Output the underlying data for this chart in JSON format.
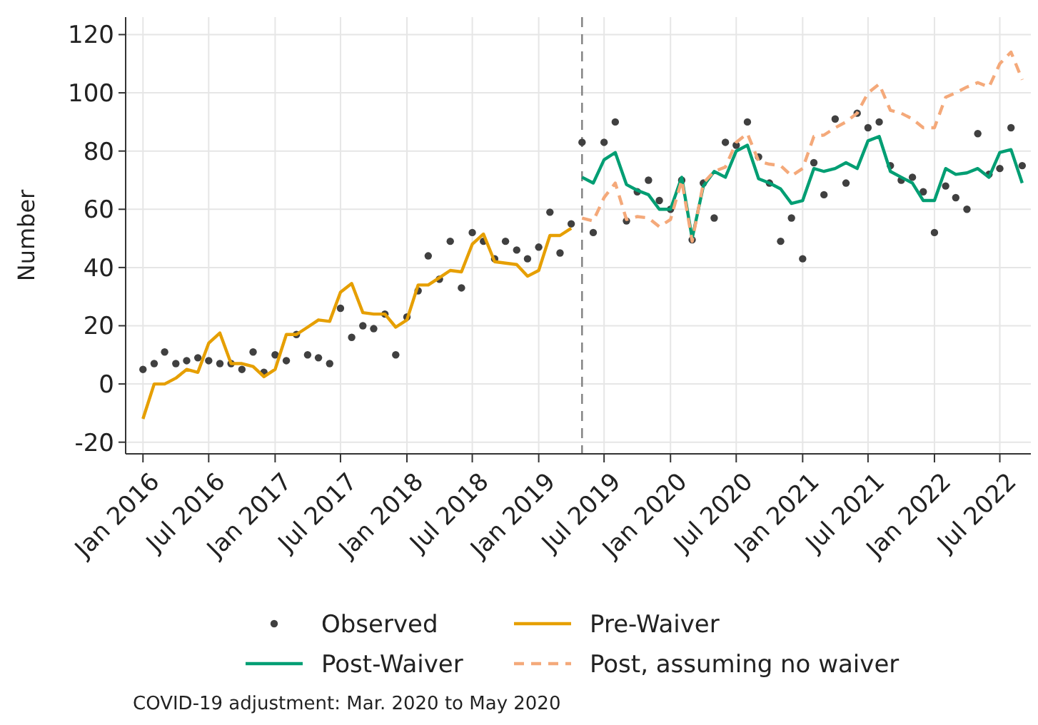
{
  "chart_data": {
    "type": "line",
    "ylabel": "Number",
    "xlim": [
      "2015-11-14",
      "2022-09-25"
    ],
    "ylim": [
      -24,
      126
    ],
    "yticks": [
      -20,
      0,
      20,
      40,
      60,
      80,
      100,
      120
    ],
    "xticks": [
      {
        "value": "2016-01",
        "label": "Jan 2016"
      },
      {
        "value": "2016-07",
        "label": "Jul 2016"
      },
      {
        "value": "2017-01",
        "label": "Jan 2017"
      },
      {
        "value": "2017-07",
        "label": "Jul 2017"
      },
      {
        "value": "2018-01",
        "label": "Jan 2018"
      },
      {
        "value": "2018-07",
        "label": "Jul 2018"
      },
      {
        "value": "2019-01",
        "label": "Jan 2019"
      },
      {
        "value": "2019-07",
        "label": "Jul 2019"
      },
      {
        "value": "2020-01",
        "label": "Jan 2020"
      },
      {
        "value": "2020-07",
        "label": "Jul 2020"
      },
      {
        "value": "2021-01",
        "label": "Jan 2021"
      },
      {
        "value": "2021-07",
        "label": "Jul 2021"
      },
      {
        "value": "2022-01",
        "label": "Jan 2022"
      },
      {
        "value": "2022-07",
        "label": "Jul 2022"
      }
    ],
    "grid": true,
    "legend": "bottom",
    "ref_lines": [
      {
        "axis": "x",
        "value": "2019-05",
        "color": "#808080",
        "line_style": "dashed"
      }
    ],
    "annotations": [
      "COVID-19 adjustment: Mar. 2020 to May 2020"
    ],
    "series": [
      {
        "name": "Observed",
        "type": "scatter",
        "marker": "circle",
        "color": "#404040",
        "x": [
          "2016-01",
          "2016-02",
          "2016-03",
          "2016-04",
          "2016-05",
          "2016-06",
          "2016-07",
          "2016-08",
          "2016-09",
          "2016-10",
          "2016-11",
          "2016-12",
          "2017-01",
          "2017-02",
          "2017-03",
          "2017-04",
          "2017-05",
          "2017-06",
          "2017-07",
          "2017-08",
          "2017-09",
          "2017-10",
          "2017-11",
          "2017-12",
          "2018-01",
          "2018-02",
          "2018-03",
          "2018-04",
          "2018-05",
          "2018-06",
          "2018-07",
          "2018-08",
          "2018-09",
          "2018-10",
          "2018-11",
          "2018-12",
          "2019-01",
          "2019-02",
          "2019-03",
          "2019-04",
          "2019-05",
          "2019-06",
          "2019-07",
          "2019-08",
          "2019-09",
          "2019-10",
          "2019-11",
          "2019-12",
          "2020-01",
          "2020-02",
          "2020-03",
          "2020-04",
          "2020-05",
          "2020-06",
          "2020-07",
          "2020-08",
          "2020-09",
          "2020-10",
          "2020-11",
          "2020-12",
          "2021-01",
          "2021-02",
          "2021-03",
          "2021-04",
          "2021-05",
          "2021-06",
          "2021-07",
          "2021-08",
          "2021-09",
          "2021-10",
          "2021-11",
          "2021-12",
          "2022-01",
          "2022-02",
          "2022-03",
          "2022-04",
          "2022-05",
          "2022-06",
          "2022-07",
          "2022-08",
          "2022-09"
        ],
        "values": [
          5,
          7,
          11,
          7,
          8,
          9,
          8,
          7,
          7,
          5,
          11,
          4,
          10,
          8,
          17,
          10,
          9,
          7,
          26,
          16,
          20,
          19,
          24,
          10,
          23,
          32,
          44,
          36,
          49,
          33,
          52,
          49,
          43,
          49,
          46,
          43,
          47,
          59,
          45,
          55,
          83,
          52,
          83,
          90,
          56,
          66,
          70,
          63,
          60,
          70,
          49.5,
          69,
          57,
          83,
          82,
          90,
          78,
          69,
          49,
          57,
          43,
          76,
          65,
          91,
          69,
          93,
          88,
          90,
          75,
          70,
          71,
          66,
          52,
          68,
          64,
          60,
          86,
          72,
          74,
          88,
          75
        ]
      },
      {
        "name": "Pre-Waiver",
        "marker": "none",
        "line_style": "solid",
        "color": "#e69f00",
        "x": [
          "2016-01",
          "2016-02",
          "2016-03",
          "2016-04",
          "2016-05",
          "2016-06",
          "2016-07",
          "2016-08",
          "2016-09",
          "2016-10",
          "2016-11",
          "2016-12",
          "2017-01",
          "2017-02",
          "2017-03",
          "2017-04",
          "2017-05",
          "2017-06",
          "2017-07",
          "2017-08",
          "2017-09",
          "2017-10",
          "2017-11",
          "2017-12",
          "2018-01",
          "2018-02",
          "2018-03",
          "2018-04",
          "2018-05",
          "2018-06",
          "2018-07",
          "2018-08",
          "2018-09",
          "2018-10",
          "2018-11",
          "2018-12",
          "2019-01",
          "2019-02",
          "2019-03",
          "2019-04"
        ],
        "values": [
          -12,
          0,
          0,
          2,
          5,
          4,
          14,
          17.5,
          7,
          7,
          6,
          2.5,
          5,
          17,
          17,
          19.5,
          22,
          21.5,
          31.5,
          34.5,
          24.5,
          24,
          24,
          19.5,
          22,
          34,
          34,
          36.5,
          39,
          38.5,
          48,
          51.5,
          42,
          41.5,
          41,
          37,
          39,
          51,
          51,
          53.5
        ]
      },
      {
        "name": "Post-Waiver",
        "marker": "none",
        "line_style": "solid",
        "color": "#009e73",
        "x": [
          "2019-05",
          "2019-06",
          "2019-07",
          "2019-08",
          "2019-09",
          "2019-10",
          "2019-11",
          "2019-12",
          "2020-01",
          "2020-02",
          "2020-03",
          "2020-04",
          "2020-05",
          "2020-06",
          "2020-07",
          "2020-08",
          "2020-09",
          "2020-10",
          "2020-11",
          "2020-12",
          "2021-01",
          "2021-02",
          "2021-03",
          "2021-04",
          "2021-05",
          "2021-06",
          "2021-07",
          "2021-08",
          "2021-09",
          "2021-10",
          "2021-11",
          "2021-12",
          "2022-01",
          "2022-02",
          "2022-03",
          "2022-04",
          "2022-05",
          "2022-06",
          "2022-07",
          "2022-08",
          "2022-09"
        ],
        "values": [
          71,
          69,
          77,
          79.5,
          68.5,
          66.5,
          65,
          60,
          60,
          71,
          50,
          68,
          73,
          71,
          80,
          82,
          70.5,
          69,
          67,
          62,
          63,
          74,
          73,
          74,
          76,
          74,
          83.5,
          85,
          73,
          71,
          69,
          63,
          63,
          74,
          72,
          72.5,
          74,
          71,
          79.5,
          80.5,
          69
        ]
      },
      {
        "name": "Post, assuming no waiver",
        "marker": "none",
        "line_style": "dashed",
        "color": "#f4a97a",
        "x": [
          "2019-05",
          "2019-06",
          "2019-07",
          "2019-08",
          "2019-09",
          "2019-10",
          "2019-11",
          "2019-12",
          "2020-01",
          "2020-02",
          "2020-03",
          "2020-04",
          "2020-05",
          "2020-06",
          "2020-07",
          "2020-08",
          "2020-09",
          "2020-10",
          "2020-11",
          "2020-12",
          "2021-01",
          "2021-02",
          "2021-03",
          "2021-04",
          "2021-05",
          "2021-06",
          "2021-07",
          "2021-08",
          "2021-09",
          "2021-10",
          "2021-11",
          "2021-12",
          "2022-01",
          "2022-02",
          "2022-03",
          "2022-04",
          "2022-05",
          "2022-06",
          "2022-07",
          "2022-08",
          "2022-09"
        ],
        "values": [
          57,
          56,
          64,
          69,
          56.5,
          57.5,
          57,
          54,
          56.5,
          70,
          49,
          69,
          73,
          74.5,
          83,
          86,
          76.5,
          75.5,
          75,
          71.5,
          74,
          85,
          85.5,
          88,
          90,
          93,
          100,
          103,
          94,
          93,
          91,
          88,
          88,
          98.5,
          100,
          102,
          103.5,
          102,
          110,
          114,
          104.5
        ]
      }
    ]
  }
}
